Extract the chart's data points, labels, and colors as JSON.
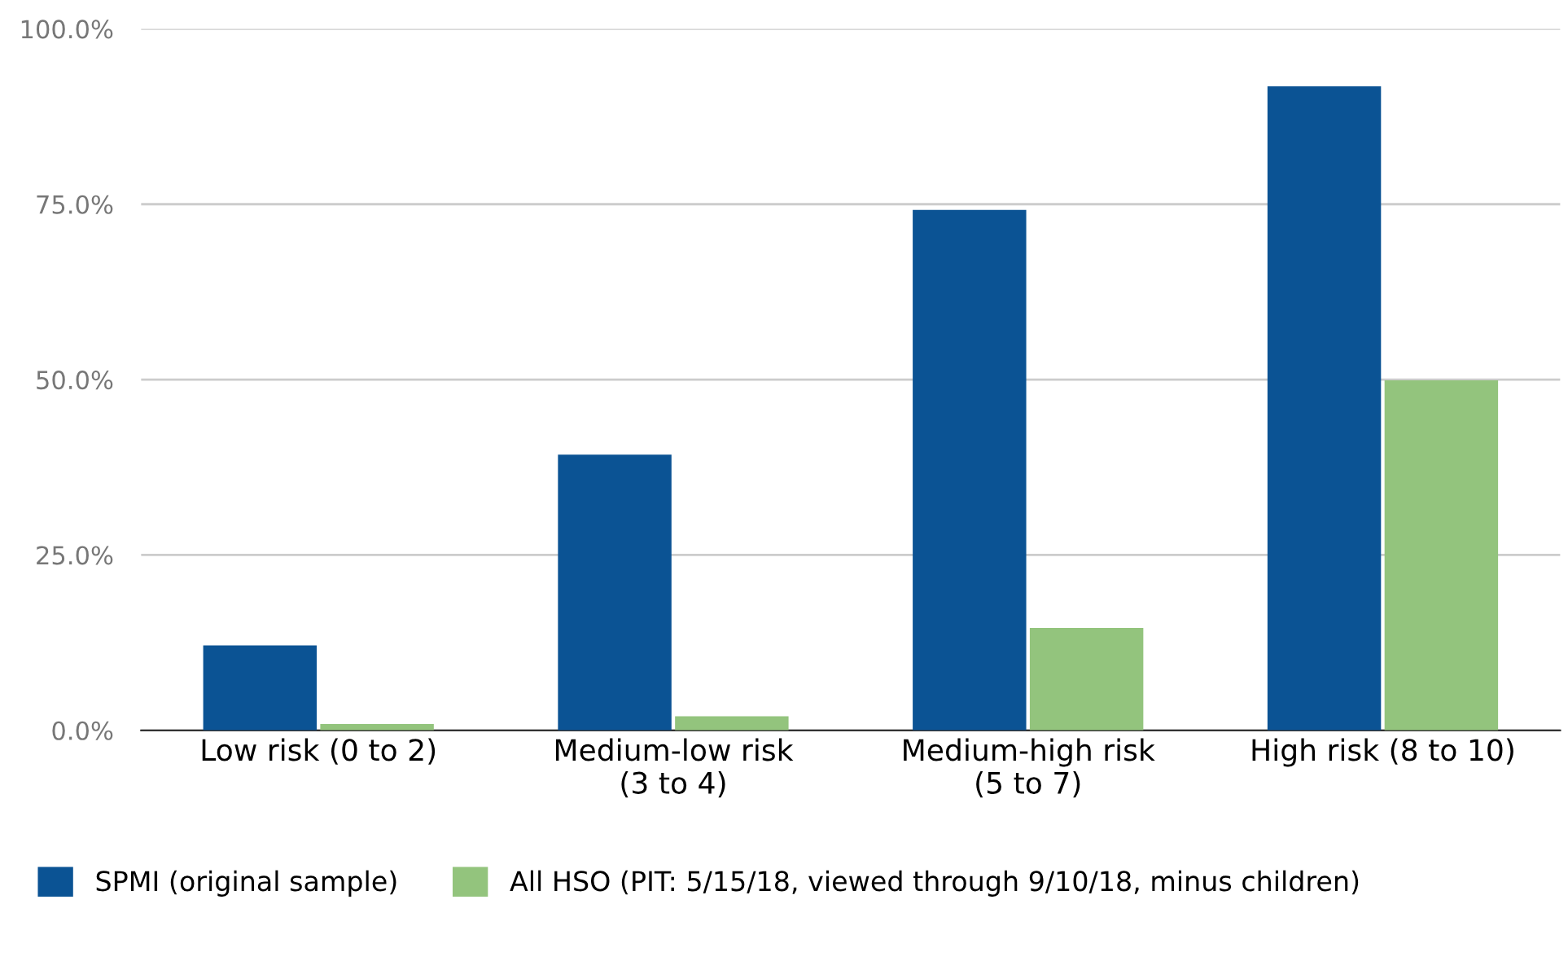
{
  "chart_data": {
    "type": "bar",
    "categories": [
      "Low risk (0 to 2)",
      "Medium-low risk\n(3 to 4)",
      "Medium-high risk\n(5 to 7)",
      "High risk (8 to 10)"
    ],
    "series": [
      {
        "name": "SPMI (original sample)",
        "color": "#0b5394",
        "values": [
          12.1,
          39.3,
          74.2,
          91.8
        ]
      },
      {
        "name": "All HSO (PIT: 5/15/18, viewed through 9/10/18, minus children)",
        "color": "#93c47d",
        "values": [
          0.9,
          2.0,
          14.6,
          49.9
        ]
      }
    ],
    "ylim": [
      0,
      100
    ],
    "yticks": [
      {
        "value": 0,
        "label": "0.0%"
      },
      {
        "value": 25,
        "label": "25.0%"
      },
      {
        "value": 50,
        "label": "50.0%"
      },
      {
        "value": 75,
        "label": "75.0%"
      },
      {
        "value": 100,
        "label": "100.0%"
      }
    ],
    "grid": "y",
    "legend": "bottom left"
  }
}
